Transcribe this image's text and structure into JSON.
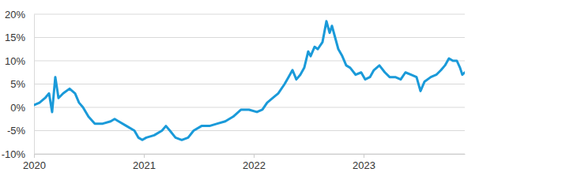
{
  "chart_data": {
    "type": "line",
    "color": "#1a9ad9",
    "grid": true,
    "x": [
      2020.0,
      2020.05,
      2020.101,
      2020.137,
      2020.165,
      2020.194,
      2020.223,
      2020.266,
      2020.324,
      2020.374,
      2020.41,
      2020.446,
      2020.496,
      2020.554,
      2020.626,
      2020.698,
      2020.734,
      2020.77,
      2020.842,
      2020.914,
      2020.95,
      2020.986,
      2021.022,
      2021.094,
      2021.165,
      2021.201,
      2021.237,
      2021.288,
      2021.345,
      2021.403,
      2021.453,
      2021.525,
      2021.597,
      2021.669,
      2021.741,
      2021.813,
      2021.885,
      2021.957,
      2022.029,
      2022.079,
      2022.122,
      2022.173,
      2022.223,
      2022.281,
      2022.317,
      2022.353,
      2022.388,
      2022.424,
      2022.46,
      2022.496,
      2022.518,
      2022.554,
      2022.583,
      2022.626,
      2022.662,
      2022.691,
      2022.712,
      2022.741,
      2022.77,
      2022.806,
      2022.842,
      2022.878,
      2022.928,
      2022.978,
      2023.014,
      2023.058,
      2023.094,
      2023.144,
      2023.194,
      2023.237,
      2023.288,
      2023.338,
      2023.381,
      2023.432,
      2023.482,
      2023.518,
      2023.554,
      2023.612,
      2023.662,
      2023.705,
      2023.741,
      2023.777,
      2023.813,
      2023.849,
      2023.878,
      2023.899,
      2023.921
    ],
    "values": [
      0.5,
      1,
      2,
      3,
      -1,
      6.5,
      2,
      3,
      4,
      3,
      1,
      0,
      -2,
      -3.5,
      -3.5,
      -3,
      -2.5,
      -3,
      -4,
      -5,
      -6.5,
      -7,
      -6.5,
      -6,
      -5,
      -4,
      -5,
      -6.5,
      -7,
      -6.5,
      -5,
      -4,
      -4,
      -3.5,
      -3,
      -2,
      -0.5,
      -0.5,
      -1,
      -0.5,
      1,
      2,
      3,
      5,
      6.5,
      8,
      6,
      7,
      8.5,
      12,
      11,
      13,
      12.5,
      14,
      18.5,
      16,
      17.5,
      15,
      12.5,
      11,
      9,
      8.5,
      7,
      7.5,
      6,
      6.5,
      8,
      9,
      7.5,
      6.5,
      6.5,
      6,
      7.5,
      7,
      6.5,
      3.5,
      5.5,
      6.5,
      7,
      8,
      9,
      10.5,
      10,
      10,
      8.5,
      7,
      7.5
    ],
    "xlim": [
      2020,
      2023.921
    ],
    "xticks": [
      2020,
      2021,
      2022,
      2023
    ],
    "ylim": [
      -10,
      20
    ],
    "yticks": [
      {
        "value": -10,
        "label": "-10%"
      },
      {
        "value": -5,
        "label": "-5%"
      },
      {
        "value": 0,
        "label": "0%"
      },
      {
        "value": 5,
        "label": "5%"
      },
      {
        "value": 10,
        "label": "10%"
      },
      {
        "value": 15,
        "label": "15%"
      },
      {
        "value": 20,
        "label": "20%"
      }
    ]
  }
}
